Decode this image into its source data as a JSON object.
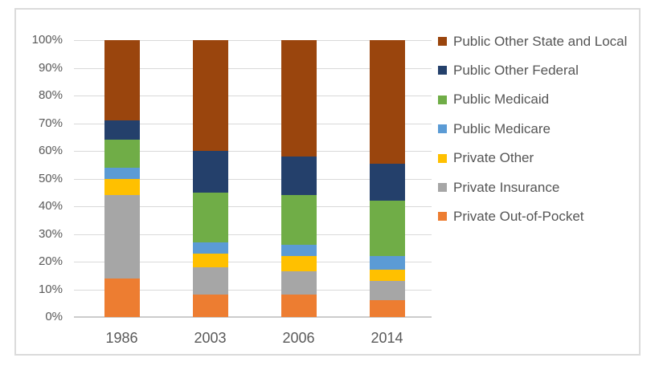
{
  "chart_data": {
    "type": "bar",
    "stacked": true,
    "units": "percent",
    "title": "",
    "xlabel": "",
    "ylabel": "",
    "categories": [
      "1986",
      "2003",
      "2006",
      "2014"
    ],
    "series": [
      {
        "name": "Private Out-of-Pocket",
        "color": "#ED7D31",
        "values": [
          14,
          8,
          8,
          6
        ]
      },
      {
        "name": "Private Insurance",
        "color": "#A6A6A6",
        "values": [
          30,
          10,
          8.5,
          7
        ]
      },
      {
        "name": "Private Other",
        "color": "#FFC000",
        "values": [
          6,
          5,
          5.5,
          4
        ]
      },
      {
        "name": "Public Medicare",
        "color": "#5B9BD5",
        "values": [
          4,
          4,
          4,
          5
        ]
      },
      {
        "name": "Public Medicaid",
        "color": "#70AD47",
        "values": [
          10,
          18,
          18,
          20
        ]
      },
      {
        "name": "Public Other Federal",
        "color": "#24406B",
        "values": [
          7,
          15,
          14,
          13.5
        ]
      },
      {
        "name": "Public Other State and Local",
        "color": "#9A450D",
        "values": [
          29,
          40,
          42,
          44.5
        ]
      }
    ],
    "ylim": [
      0,
      100
    ],
    "ytick_values": [
      0,
      10,
      20,
      30,
      40,
      50,
      60,
      70,
      80,
      90,
      100
    ],
    "ytick_labels": [
      "0%",
      "10%",
      "20%",
      "30%",
      "40%",
      "50%",
      "60%",
      "70%",
      "80%",
      "90%",
      "100%"
    ],
    "grid": true,
    "legend_position": "right",
    "legend_order_top_to_bottom": [
      "Public Other State and Local",
      "Public Other Federal",
      "Public Medicaid",
      "Public Medicare",
      "Private Other",
      "Private Insurance",
      "Private Out-of-Pocket"
    ]
  },
  "colors": {
    "gridline": "#d9d9d9",
    "axis_line": "#cccccc",
    "tick_text": "#595959",
    "legend_text": "#555555",
    "frame_border": "#dbdbdb",
    "background": "#ffffff"
  }
}
